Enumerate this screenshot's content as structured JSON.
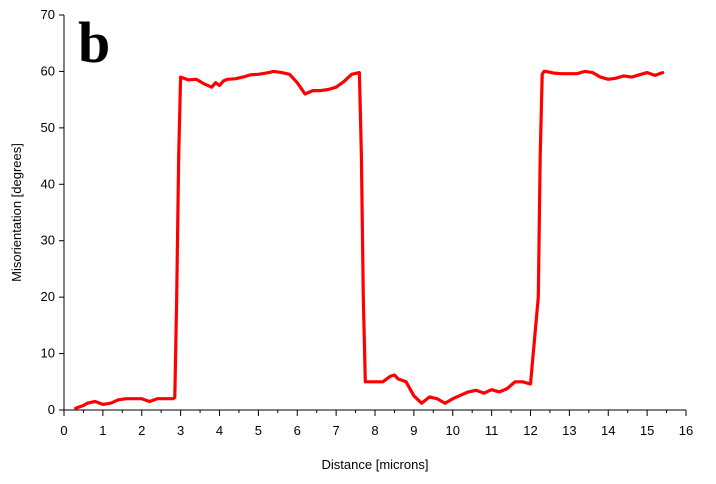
{
  "panel_label": "b",
  "colors": {
    "series": "#ff0000",
    "axis": "#000000",
    "background": "#ffffff"
  },
  "chart_data": {
    "type": "line",
    "title": "",
    "xlabel": "Distance [microns]",
    "ylabel": "Misorientation [degrees]",
    "xlim": [
      0,
      16
    ],
    "ylim": [
      0,
      70
    ],
    "xticks": [
      0,
      1,
      2,
      3,
      4,
      5,
      6,
      7,
      8,
      9,
      10,
      11,
      12,
      13,
      14,
      15,
      16
    ],
    "yticks": [
      0,
      10,
      20,
      30,
      40,
      50,
      60,
      70
    ],
    "grid": false,
    "legend": "none",
    "series": [
      {
        "color": "#ff0000",
        "x": [
          0.3,
          0.5,
          0.6,
          0.8,
          1.0,
          1.2,
          1.4,
          1.6,
          1.8,
          2.0,
          2.2,
          2.4,
          2.6,
          2.8,
          2.85,
          2.9,
          2.95,
          3.0,
          3.2,
          3.4,
          3.6,
          3.8,
          3.9,
          4.0,
          4.1,
          4.2,
          4.4,
          4.6,
          4.8,
          5.0,
          5.2,
          5.4,
          5.6,
          5.8,
          6.0,
          6.2,
          6.4,
          6.6,
          6.8,
          7.0,
          7.2,
          7.4,
          7.6,
          7.65,
          7.7,
          7.75,
          7.8,
          8.0,
          8.2,
          8.4,
          8.5,
          8.6,
          8.8,
          9.0,
          9.2,
          9.4,
          9.6,
          9.8,
          10.0,
          10.2,
          10.4,
          10.6,
          10.8,
          11.0,
          11.2,
          11.4,
          11.6,
          11.8,
          12.0,
          12.2,
          12.25,
          12.3,
          12.35,
          12.4,
          12.6,
          12.8,
          13.0,
          13.2,
          13.4,
          13.6,
          13.8,
          14.0,
          14.2,
          14.4,
          14.6,
          14.8,
          15.0,
          15.2,
          15.4
        ],
        "y": [
          0.3,
          0.8,
          1.2,
          1.5,
          1.0,
          1.2,
          1.8,
          2.0,
          2.0,
          2.0,
          1.5,
          2.0,
          2.0,
          2.0,
          2.2,
          20.0,
          45.0,
          59.0,
          58.5,
          58.6,
          57.8,
          57.2,
          58.0,
          57.5,
          58.3,
          58.6,
          58.7,
          59.0,
          59.4,
          59.5,
          59.7,
          60.0,
          59.8,
          59.5,
          58.0,
          56.0,
          56.6,
          56.6,
          56.8,
          57.2,
          58.2,
          59.5,
          59.8,
          45.0,
          20.0,
          5.0,
          5.0,
          5.0,
          5.0,
          6.0,
          6.2,
          5.5,
          5.0,
          2.5,
          1.2,
          2.3,
          2.0,
          1.2,
          2.0,
          2.6,
          3.2,
          3.5,
          3.0,
          3.6,
          3.2,
          3.8,
          5.0,
          5.0,
          4.6,
          20.0,
          45.0,
          59.5,
          60.0,
          60.0,
          59.7,
          59.6,
          59.6,
          59.6,
          60.0,
          59.8,
          59.0,
          58.6,
          58.8,
          59.2,
          59.0,
          59.4,
          59.8,
          59.3,
          59.8
        ]
      }
    ]
  }
}
